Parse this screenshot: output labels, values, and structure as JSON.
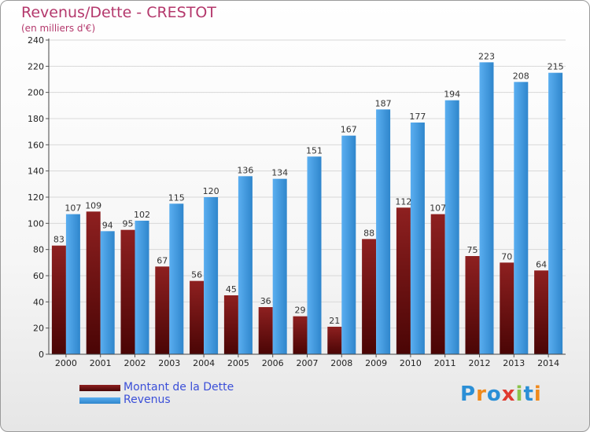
{
  "title": "Revenus/Dette - CRESTOT",
  "subtitle": "(en milliers d'€)",
  "logo": {
    "letters": [
      "P",
      "r",
      "o",
      "x",
      "i",
      "t",
      "i"
    ],
    "colors": [
      "#2b8fd6",
      "#f08a1c",
      "#2b8fd6",
      "#e03a2f",
      "#8bc34a",
      "#2b8fd6",
      "#f08a1c"
    ]
  },
  "chart_data": {
    "type": "bar",
    "categories": [
      "2000",
      "2001",
      "2002",
      "2003",
      "2004",
      "2005",
      "2006",
      "2007",
      "2008",
      "2009",
      "2010",
      "2011",
      "2012",
      "2013",
      "2014"
    ],
    "series": [
      {
        "name": "Montant de la Dette",
        "color": "#7a1515",
        "values": [
          83,
          109,
          95,
          67,
          56,
          45,
          36,
          29,
          21,
          88,
          112,
          107,
          75,
          70,
          64
        ]
      },
      {
        "name": "Revenus",
        "color": "#3d9be0",
        "values": [
          107,
          94,
          102,
          115,
          120,
          136,
          134,
          151,
          167,
          187,
          177,
          194,
          223,
          208,
          215
        ]
      }
    ],
    "ylim": [
      0,
      240
    ],
    "yticks": [
      0,
      20,
      40,
      60,
      80,
      100,
      120,
      140,
      160,
      180,
      200,
      220,
      240
    ],
    "grid": true,
    "legend_position": "bottom-left"
  }
}
